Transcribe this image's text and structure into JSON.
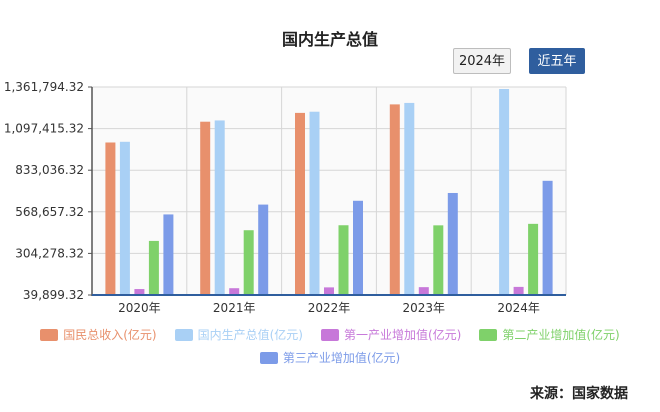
{
  "chart_data": {
    "type": "bar",
    "title": "国内生产总值",
    "categories": [
      "2020年",
      "2021年",
      "2022年",
      "2023年",
      "2024年"
    ],
    "y_ticks": [
      "39,899.32",
      "304,278.32",
      "568,657.32",
      "833,036.32",
      "1,097,415.32",
      "1,361,794.32"
    ],
    "ylim": [
      39899.32,
      1361794.32
    ],
    "grid": true,
    "legend_position": "bottom",
    "series": [
      {
        "name": "国民总收入(亿元)",
        "color": "#e8906c",
        "values": [
          1009151,
          1141231,
          1197250,
          1251297,
          null
        ]
      },
      {
        "name": "国内生产总值(亿元)",
        "color": "#a9d0f5",
        "values": [
          1013567,
          1149237,
          1204724,
          1260582,
          1349084
        ]
      },
      {
        "name": "第一产业增加值(亿元)",
        "color": "#c778d9",
        "values": [
          77754,
          83086,
          88345,
          89755,
          91414
        ]
      },
      {
        "name": "第二产业增加值(亿元)",
        "color": "#7fd16a",
        "values": [
          383562,
          451544,
          483164,
          482589,
          492087
        ]
      },
      {
        "name": "第三产业增加值(亿元)",
        "color": "#7c9be8",
        "values": [
          551974,
          614476,
          638698,
          688238,
          765583
        ]
      }
    ]
  },
  "controls": {
    "year_button": "2024年",
    "five_years_button": "近五年"
  },
  "source": "来源：国家数据"
}
